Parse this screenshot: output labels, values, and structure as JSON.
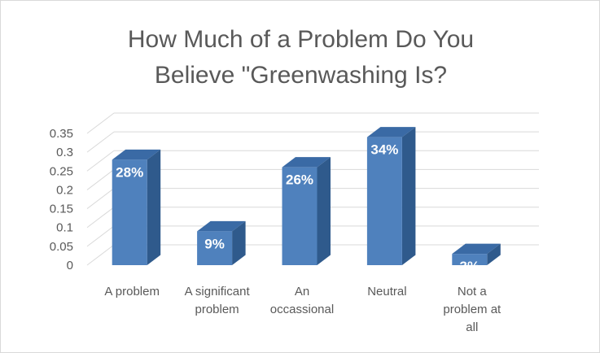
{
  "chart_data": {
    "type": "bar",
    "title_lines": [
      "How Much of a Problem Do You",
      "Believe \"Greenwashing Is?"
    ],
    "categories": [
      [
        "A problem"
      ],
      [
        "A significant",
        "problem"
      ],
      [
        "An",
        "occassional"
      ],
      [
        "Neutral"
      ],
      [
        "Not a",
        "problem at",
        "all"
      ]
    ],
    "values": [
      0.28,
      0.09,
      0.26,
      0.34,
      0.03
    ],
    "data_labels": [
      "28%",
      "9%",
      "26%",
      "34%",
      "3%"
    ],
    "y_ticks": [
      "0",
      "0.05",
      "0.1",
      "0.15",
      "0.2",
      "0.25",
      "0.3",
      "0.35"
    ],
    "ylim": [
      0,
      0.35
    ],
    "grid": true,
    "legend": "none",
    "colors": {
      "bar_front": "#4f81bd",
      "bar_side": "#2f5a8c",
      "bar_top": "#3a6aa5",
      "grid": "#d9d9d9",
      "text": "#595959"
    }
  }
}
